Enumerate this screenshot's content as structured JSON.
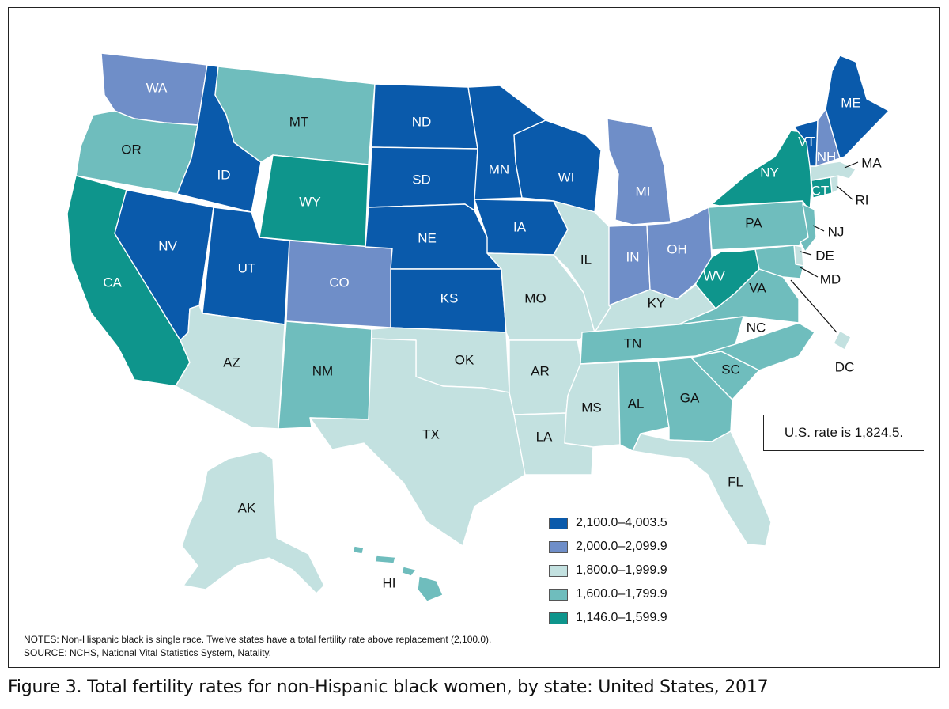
{
  "rate_note": "U.S. rate is 1,824.5.",
  "legend": [
    {
      "label": "2,100.0–4,003.5",
      "color": "#0a5aab"
    },
    {
      "label": "2,000.0–2,099.9",
      "color": "#6f8ec8"
    },
    {
      "label": "1,800.0–1,999.9",
      "color": "#c3e1e0"
    },
    {
      "label": "1,600.0–1,799.9",
      "color": "#6fbdbd"
    },
    {
      "label": "1,146.0–1,599.9",
      "color": "#0e958c"
    }
  ],
  "notes": {
    "line1": "NOTES: Non-Hispanic black is single race. Twelve states have a total fertility rate above replacement (2,100.0).",
    "line2": "SOURCE: NCHS, National Vital Statistics System, Natality."
  },
  "caption": "Figure 3. Total fertility rates for non-Hispanic black women, by state: United States, 2017",
  "states": {
    "WA": {
      "label": "WA",
      "class": 1
    },
    "OR": {
      "label": "OR",
      "class": 3
    },
    "CA": {
      "label": "CA",
      "class": 4
    },
    "ID": {
      "label": "ID",
      "class": 0
    },
    "NV": {
      "label": "NV",
      "class": 0
    },
    "MT": {
      "label": "MT",
      "class": 3
    },
    "WY": {
      "label": "WY",
      "class": 4
    },
    "UT": {
      "label": "UT",
      "class": 0
    },
    "AZ": {
      "label": "AZ",
      "class": 2
    },
    "CO": {
      "label": "CO",
      "class": 1
    },
    "NM": {
      "label": "NM",
      "class": 3
    },
    "ND": {
      "label": "ND",
      "class": 0
    },
    "SD": {
      "label": "SD",
      "class": 0
    },
    "NE": {
      "label": "NE",
      "class": 0
    },
    "KS": {
      "label": "KS",
      "class": 0
    },
    "OK": {
      "label": "OK",
      "class": 2
    },
    "TX": {
      "label": "TX",
      "class": 2
    },
    "MN": {
      "label": "MN",
      "class": 0
    },
    "IA": {
      "label": "IA",
      "class": 0
    },
    "MO": {
      "label": "MO",
      "class": 2
    },
    "AR": {
      "label": "AR",
      "class": 2
    },
    "LA": {
      "label": "LA",
      "class": 2
    },
    "WI": {
      "label": "WI",
      "class": 0
    },
    "IL": {
      "label": "IL",
      "class": 2
    },
    "MI": {
      "label": "MI",
      "class": 1
    },
    "IN": {
      "label": "IN",
      "class": 1
    },
    "OH": {
      "label": "OH",
      "class": 1
    },
    "KY": {
      "label": "KY",
      "class": 2
    },
    "TN": {
      "label": "TN",
      "class": 3
    },
    "MS": {
      "label": "MS",
      "class": 2
    },
    "AL": {
      "label": "AL",
      "class": 3
    },
    "GA": {
      "label": "GA",
      "class": 3
    },
    "FL": {
      "label": "FL",
      "class": 2
    },
    "SC": {
      "label": "SC",
      "class": 3
    },
    "NC": {
      "label": "NC",
      "class": 3
    },
    "VA": {
      "label": "VA",
      "class": 3
    },
    "WV": {
      "label": "WV",
      "class": 4
    },
    "PA": {
      "label": "PA",
      "class": 3
    },
    "NY": {
      "label": "NY",
      "class": 4
    },
    "VT": {
      "label": "VT",
      "class": 0
    },
    "NH": {
      "label": "NH",
      "class": 1
    },
    "ME": {
      "label": "ME",
      "class": 0
    },
    "MA": {
      "label": "MA",
      "class": 2
    },
    "RI": {
      "label": "RI",
      "class": 2
    },
    "CT": {
      "label": "CT",
      "class": 4
    },
    "NJ": {
      "label": "NJ",
      "class": 3
    },
    "DE": {
      "label": "DE",
      "class": 2
    },
    "MD": {
      "label": "MD",
      "class": 3
    },
    "DC": {
      "label": "DC",
      "class": 2
    },
    "AK": {
      "label": "AK",
      "class": 2
    },
    "HI": {
      "label": "HI",
      "class": 3
    }
  }
}
